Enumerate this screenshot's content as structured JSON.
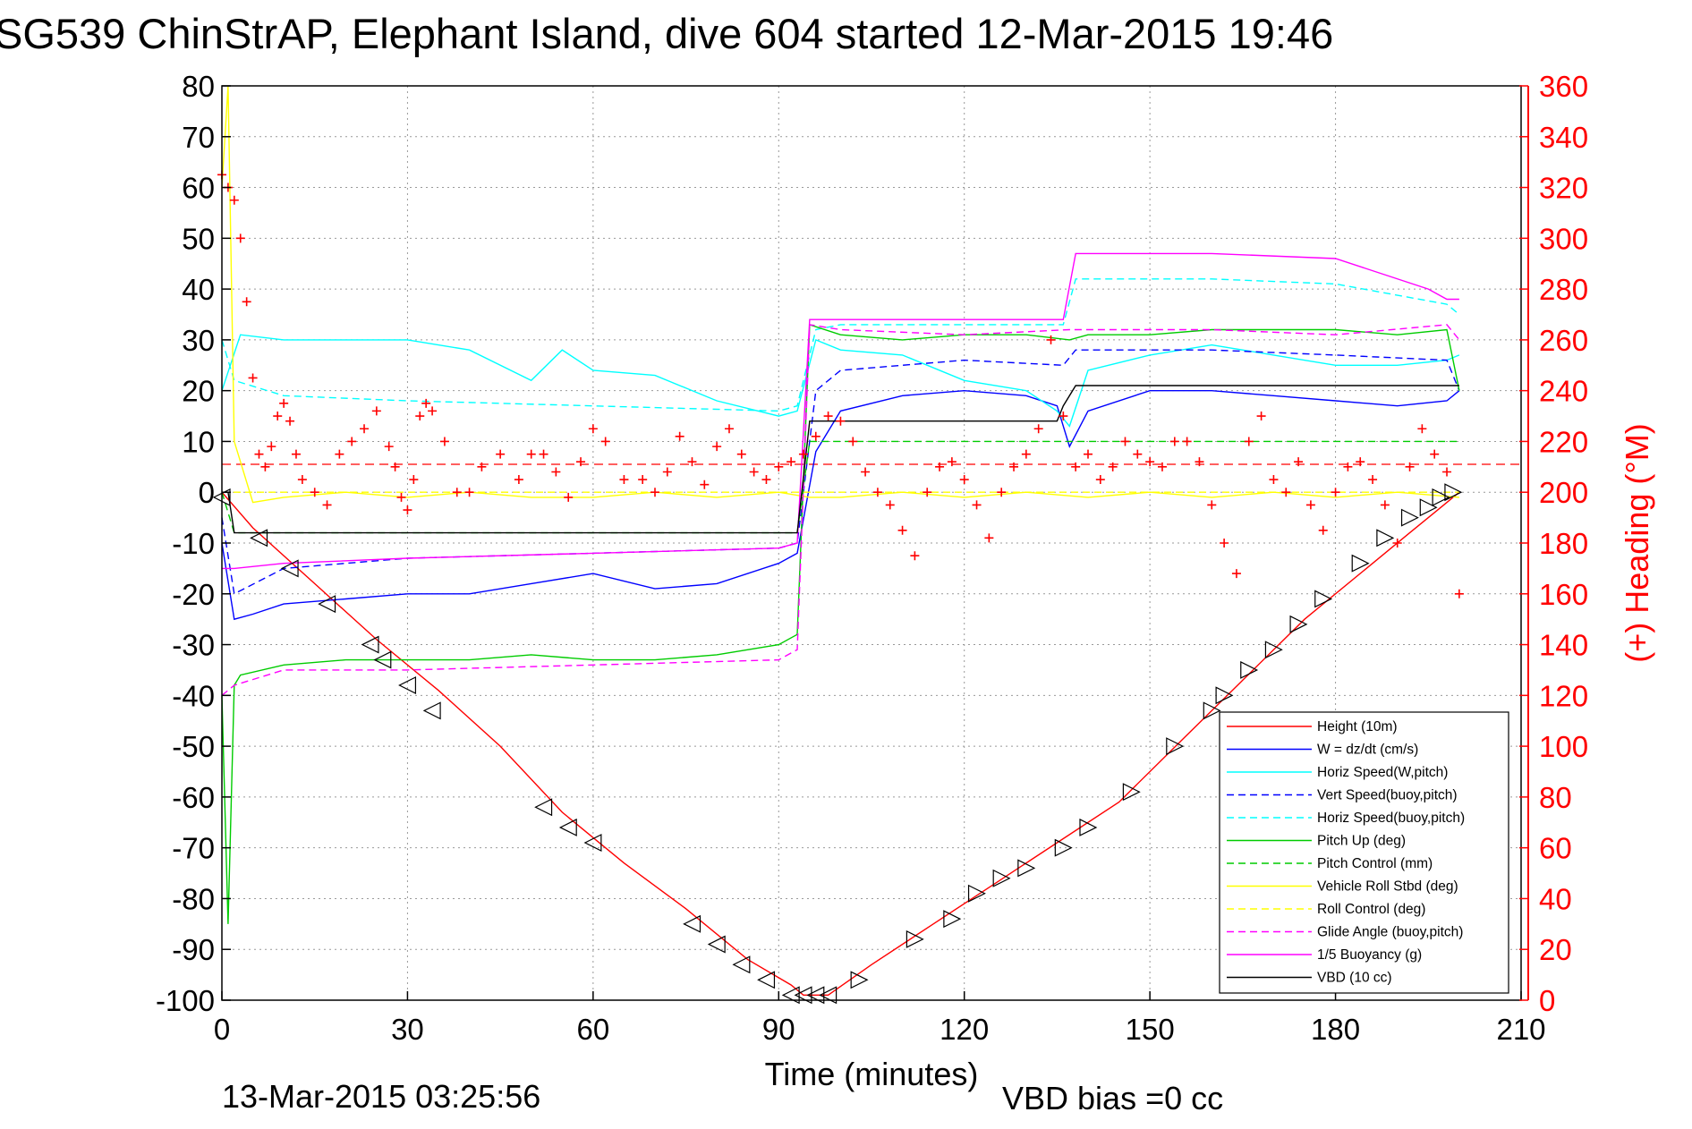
{
  "chart_data": {
    "type": "line",
    "title": "SG539 ChinStrAP, Elephant Island, dive 604 started 12-Mar-2015 19:46",
    "xlabel": "Time (minutes)",
    "ylabel_right": "(+) Heading (°M)",
    "footer_left": "13-Mar-2015 03:25:56",
    "footer_right": "VBD bias =0 cc",
    "xlim": [
      0,
      210
    ],
    "ylim": [
      -100,
      80
    ],
    "ylim_right": [
      0,
      360
    ],
    "x_ticks": [
      0,
      30,
      60,
      90,
      120,
      150,
      180,
      210
    ],
    "y_ticks": [
      80,
      70,
      60,
      50,
      40,
      30,
      20,
      10,
      0,
      -10,
      -20,
      -30,
      -40,
      -50,
      -60,
      -70,
      -80,
      -90,
      -100
    ],
    "y_ticks_right": [
      360,
      340,
      320,
      300,
      280,
      260,
      240,
      220,
      200,
      180,
      160,
      140,
      120,
      100,
      80,
      60,
      40,
      20,
      0
    ],
    "grid": true,
    "legend_position": "lower-right",
    "series": [
      {
        "name": "Height (10m)",
        "color": "#ff0000",
        "style": "solid",
        "x": [
          0,
          5,
          15,
          25,
          35,
          45,
          55,
          65,
          75,
          85,
          92,
          94,
          98,
          105,
          115,
          125,
          135,
          145,
          155,
          165,
          175,
          185,
          192,
          197,
          200
        ],
        "y": [
          0,
          -7,
          -18,
          -29,
          -39,
          -50,
          -63,
          -73,
          -82,
          -92,
          -97,
          -99,
          -99,
          -93,
          -85,
          -77,
          -69,
          -61,
          -49,
          -37,
          -25,
          -15,
          -8,
          -3,
          0
        ]
      },
      {
        "name": "W = dz/dt (cm/s)",
        "color": "#0000ff",
        "style": "solid",
        "x": [
          0,
          2,
          5,
          10,
          20,
          30,
          40,
          50,
          60,
          70,
          80,
          90,
          93,
          96,
          100,
          110,
          120,
          130,
          135,
          137,
          140,
          150,
          160,
          170,
          180,
          190,
          198,
          200
        ],
        "y": [
          -10,
          -25,
          -24,
          -22,
          -21,
          -20,
          -20,
          -18,
          -16,
          -19,
          -18,
          -14,
          -12,
          8,
          16,
          19,
          20,
          19,
          17,
          9,
          16,
          20,
          20,
          19,
          18,
          17,
          18,
          20
        ]
      },
      {
        "name": "Horiz Speed(W,pitch)",
        "color": "#00ffff",
        "style": "solid",
        "x": [
          0,
          3,
          10,
          20,
          30,
          40,
          50,
          55,
          60,
          70,
          80,
          90,
          93,
          96,
          100,
          110,
          120,
          130,
          135,
          137,
          140,
          150,
          160,
          170,
          180,
          190,
          198,
          200
        ],
        "y": [
          20,
          31,
          30,
          30,
          30,
          28,
          22,
          28,
          24,
          23,
          18,
          15,
          16,
          30,
          28,
          27,
          22,
          20,
          16,
          13,
          24,
          27,
          29,
          27,
          25,
          25,
          26,
          27
        ]
      },
      {
        "name": "Vert Speed(buoy,pitch)",
        "color": "#0000ff",
        "style": "dashed",
        "x": [
          0,
          2,
          10,
          30,
          60,
          90,
          93,
          96,
          100,
          120,
          136,
          138,
          160,
          180,
          198,
          200
        ],
        "y": [
          -5,
          -20,
          -15,
          -13,
          -12,
          -11,
          -10,
          20,
          24,
          26,
          25,
          28,
          28,
          27,
          26,
          20
        ]
      },
      {
        "name": "Horiz Speed(buoy,pitch)",
        "color": "#00ffff",
        "style": "dashed",
        "x": [
          0,
          2,
          10,
          30,
          60,
          90,
          93,
          96,
          100,
          120,
          136,
          138,
          160,
          180,
          198,
          200
        ],
        "y": [
          30,
          22,
          19,
          18,
          17,
          16,
          17,
          32,
          33,
          33,
          33,
          42,
          42,
          41,
          37,
          35
        ]
      },
      {
        "name": "Pitch Up (deg)",
        "color": "#00cc00",
        "style": "solid",
        "x": [
          0,
          1,
          2,
          3,
          10,
          20,
          30,
          40,
          50,
          60,
          70,
          80,
          90,
          93,
          95,
          100,
          110,
          120,
          130,
          137,
          140,
          150,
          160,
          170,
          180,
          190,
          198,
          200
        ],
        "y": [
          -40,
          -85,
          -38,
          -36,
          -34,
          -33,
          -33,
          -33,
          -32,
          -33,
          -33,
          -32,
          -30,
          -28,
          33,
          31,
          30,
          31,
          31,
          30,
          31,
          31,
          32,
          32,
          32,
          31,
          32,
          20
        ]
      },
      {
        "name": "Pitch Control (mm)",
        "color": "#00cc00",
        "style": "dashed",
        "x": [
          0,
          2,
          93,
          95,
          200
        ],
        "y": [
          0,
          -8,
          -8,
          10,
          10
        ]
      },
      {
        "name": "Vehicle Roll Stbd (deg)",
        "color": "#ffff00",
        "style": "solid",
        "x": [
          0,
          1,
          2,
          5,
          10,
          20,
          30,
          40,
          50,
          60,
          70,
          80,
          90,
          95,
          100,
          110,
          120,
          130,
          140,
          150,
          160,
          170,
          180,
          190,
          200
        ],
        "y": [
          60,
          80,
          10,
          -2,
          -1,
          0,
          -1,
          0,
          -1,
          -1,
          0,
          -1,
          0,
          -1,
          -1,
          0,
          -1,
          0,
          -1,
          0,
          -1,
          0,
          -1,
          0,
          -1
        ]
      },
      {
        "name": "Roll Control (deg)",
        "color": "#ffff00",
        "style": "dashed",
        "x": [
          0,
          2,
          20,
          30,
          50,
          60,
          80,
          95,
          110,
          130,
          150,
          170,
          190,
          200
        ],
        "y": [
          0,
          0,
          0,
          0,
          0,
          0,
          0,
          0,
          0,
          0,
          0,
          0,
          0,
          0
        ]
      },
      {
        "name": "Glide Angle (buoy,pitch)",
        "color": "#ff00ff",
        "style": "dashed",
        "x": [
          0,
          2,
          10,
          30,
          60,
          90,
          93,
          95,
          100,
          120,
          137,
          160,
          180,
          198,
          200
        ],
        "y": [
          -40,
          -38,
          -35,
          -35,
          -34,
          -33,
          -31,
          33,
          32,
          31,
          32,
          32,
          31,
          33,
          30
        ]
      },
      {
        "name": "1/5 Buoyancy (g)",
        "color": "#ff00ff",
        "style": "solid",
        "x": [
          0,
          2,
          10,
          30,
          60,
          90,
          93,
          95,
          100,
          120,
          136,
          138,
          160,
          180,
          195,
          198,
          200
        ],
        "y": [
          -15,
          -15,
          -14,
          -13,
          -12,
          -11,
          -10,
          34,
          34,
          34,
          34,
          47,
          47,
          46,
          40,
          38,
          38
        ]
      },
      {
        "name": "VBD (10 cc)",
        "color": "#000000",
        "style": "solid",
        "x": [
          0,
          1,
          2,
          92,
          93,
          95,
          97,
          98,
          119,
          120,
          135,
          136,
          138,
          198,
          200
        ],
        "y": [
          0,
          0,
          -8,
          -8,
          -8,
          14,
          14,
          14,
          14,
          14,
          14,
          17,
          21,
          21,
          21
        ]
      }
    ],
    "heading": {
      "name": "Heading (°M)",
      "color": "#ff0000",
      "marker": "+",
      "mean_line": 211,
      "x": [
        0,
        1,
        2,
        3,
        4,
        5,
        6,
        7,
        8,
        9,
        10,
        11,
        12,
        13,
        15,
        17,
        19,
        21,
        23,
        25,
        27,
        28,
        29,
        30,
        31,
        32,
        33,
        34,
        36,
        38,
        40,
        42,
        45,
        48,
        50,
        52,
        54,
        56,
        58,
        60,
        62,
        65,
        68,
        70,
        72,
        74,
        76,
        78,
        80,
        82,
        84,
        86,
        88,
        90,
        92,
        94,
        96,
        98,
        100,
        102,
        104,
        106,
        108,
        110,
        112,
        114,
        116,
        118,
        120,
        122,
        124,
        126,
        128,
        130,
        132,
        134,
        136,
        138,
        140,
        142,
        144,
        146,
        148,
        150,
        152,
        154,
        156,
        158,
        160,
        162,
        164,
        166,
        168,
        170,
        172,
        174,
        176,
        178,
        180,
        182,
        184,
        186,
        188,
        190,
        192,
        194,
        196,
        198,
        200
      ],
      "y": [
        325,
        320,
        315,
        300,
        275,
        245,
        215,
        210,
        218,
        230,
        235,
        228,
        215,
        205,
        200,
        195,
        215,
        220,
        225,
        232,
        218,
        210,
        198,
        193,
        205,
        230,
        235,
        232,
        220,
        200,
        200,
        210,
        215,
        205,
        215,
        215,
        208,
        198,
        212,
        225,
        220,
        205,
        205,
        200,
        208,
        222,
        212,
        203,
        218,
        225,
        215,
        208,
        205,
        210,
        212,
        215,
        222,
        230,
        228,
        220,
        208,
        200,
        195,
        185,
        175,
        200,
        210,
        212,
        205,
        195,
        182,
        200,
        210,
        215,
        225,
        260,
        230,
        210,
        215,
        205,
        210,
        220,
        215,
        212,
        210,
        220,
        220,
        212,
        195,
        180,
        168,
        220,
        230,
        205,
        200,
        212,
        195,
        185,
        200,
        210,
        212,
        205,
        195,
        180,
        210,
        225,
        215,
        208,
        160
      ]
    },
    "markers": {
      "name": "dive markers",
      "color": "#000000",
      "x": [
        0,
        6,
        11,
        17,
        24,
        26,
        30,
        34,
        52,
        56,
        60,
        76,
        80,
        84,
        88,
        92,
        94,
        96,
        98,
        103,
        112,
        118,
        122,
        126,
        130,
        136,
        140,
        147,
        154,
        160,
        162,
        166,
        170,
        174,
        178,
        184,
        188,
        192,
        195,
        197,
        199
      ],
      "y": [
        -1,
        -9,
        -15,
        -22,
        -30,
        -33,
        -38,
        -43,
        -62,
        -66,
        -69,
        -85,
        -89,
        -93,
        -96,
        -99,
        -99,
        -99,
        -99,
        -96,
        -88,
        -84,
        -79,
        -76,
        -74,
        -70,
        -66,
        -59,
        -50,
        -43,
        -40,
        -35,
        -31,
        -26,
        -21,
        -14,
        -9,
        -5,
        -3,
        -1,
        0
      ],
      "direction": [
        "down",
        "down",
        "down",
        "down",
        "down",
        "down",
        "down",
        "down",
        "down",
        "down",
        "down",
        "down",
        "down",
        "down",
        "down",
        "down",
        "down",
        "down",
        "down",
        "up",
        "up",
        "up",
        "up",
        "up",
        "up",
        "up",
        "up",
        "up",
        "up",
        "up",
        "up",
        "up",
        "up",
        "up",
        "up",
        "up",
        "up",
        "up",
        "up",
        "up",
        "up"
      ]
    }
  }
}
